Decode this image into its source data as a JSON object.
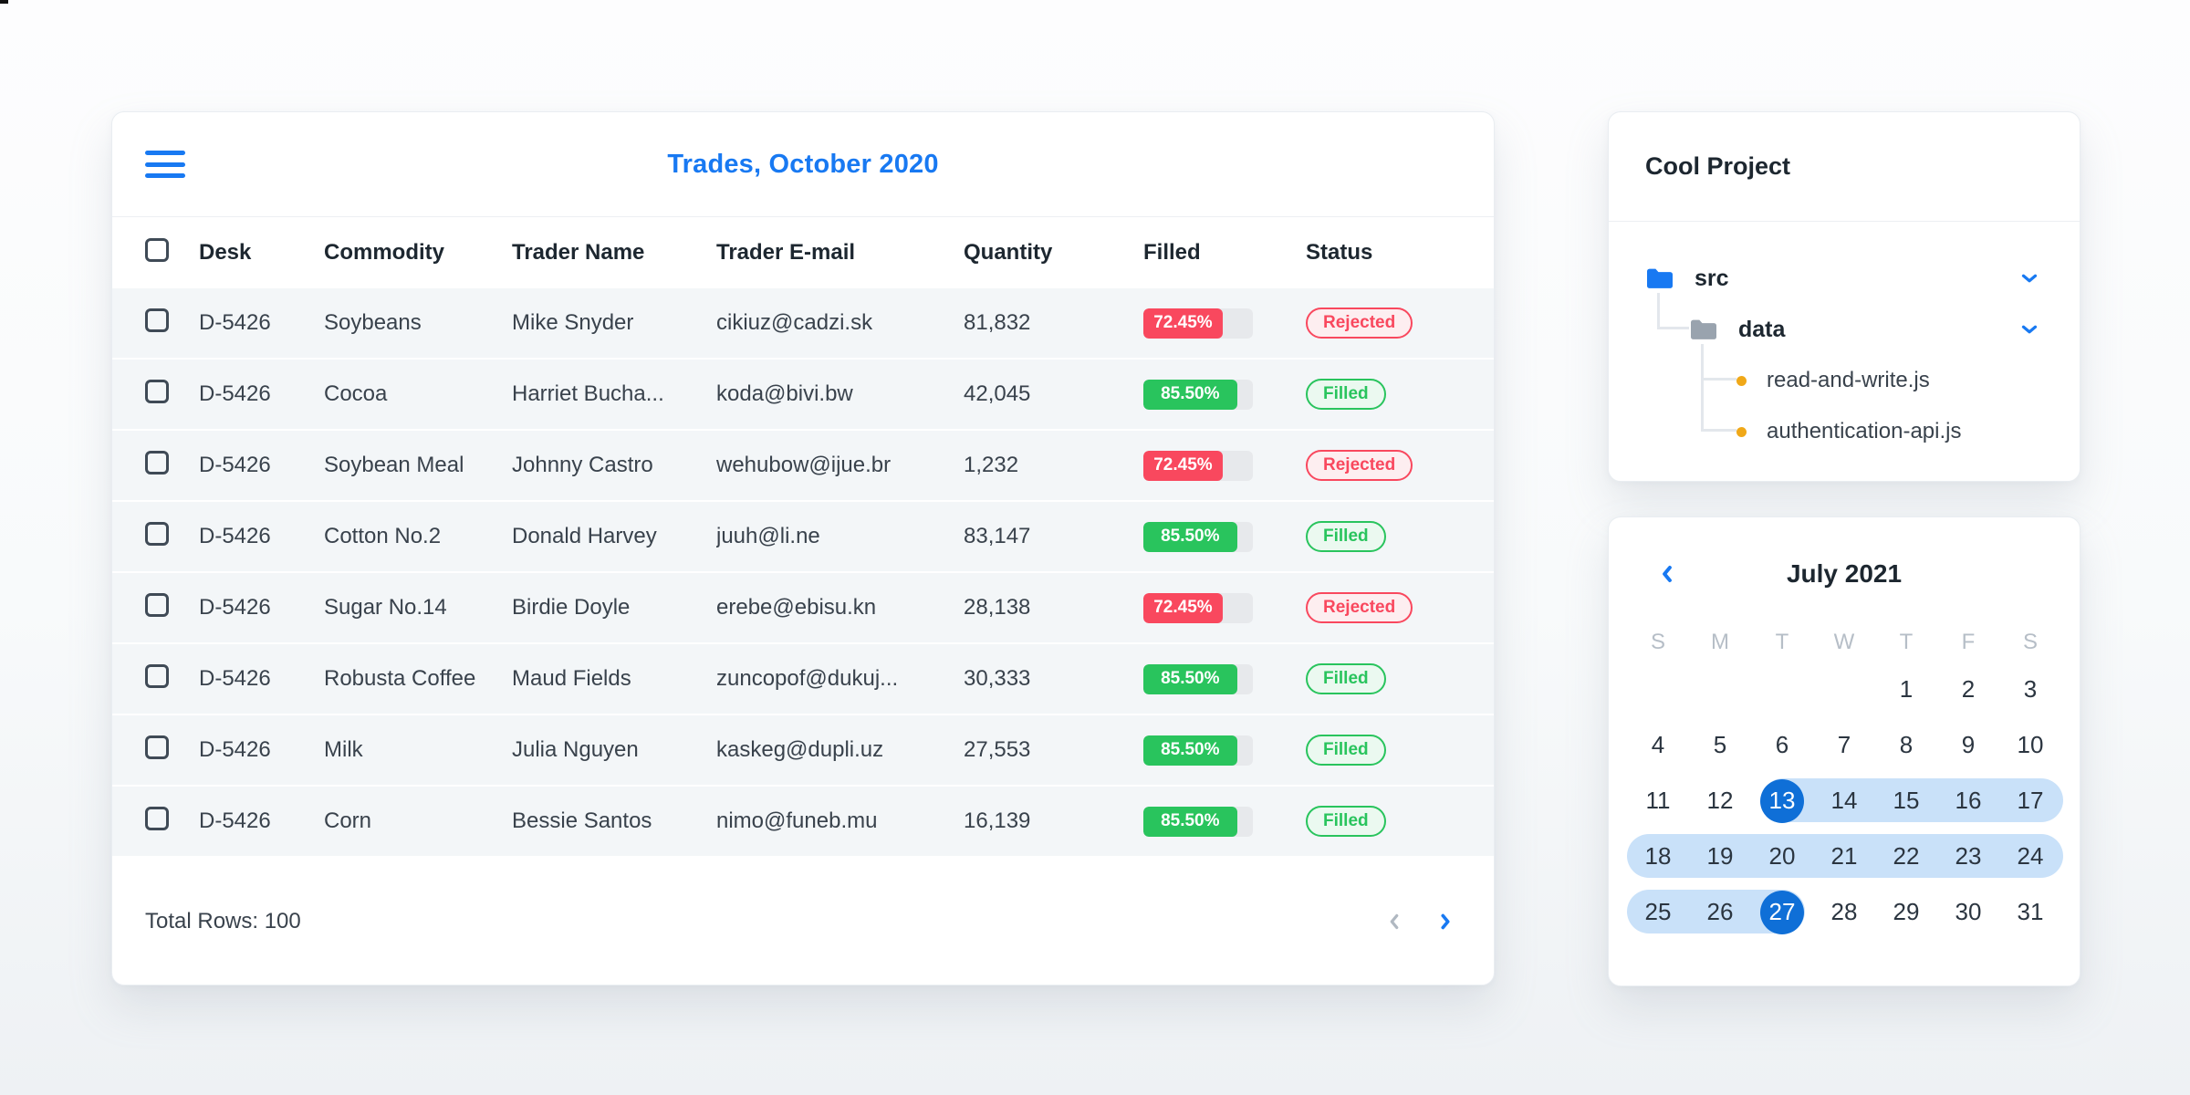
{
  "trades": {
    "title": "Trades, October 2020",
    "menu_icon": "hamburger",
    "columns": [
      "Desk",
      "Commodity",
      "Trader Name",
      "Trader E-mail",
      "Quantity",
      "Filled",
      "Status"
    ],
    "rows": [
      {
        "desk": "D-5426",
        "commodity": "Soybeans",
        "trader": "Mike Snyder",
        "email": "cikiuz@cadzi.sk",
        "quantity": "81,832",
        "filled_label": "72.45%",
        "filled_value": 72.45,
        "status": "Rejected"
      },
      {
        "desk": "D-5426",
        "commodity": "Cocoa",
        "trader": "Harriet Bucha...",
        "email": "koda@bivi.bw",
        "quantity": "42,045",
        "filled_label": "85.50%",
        "filled_value": 85.5,
        "status": "Filled"
      },
      {
        "desk": "D-5426",
        "commodity": "Soybean Meal",
        "trader": "Johnny Castro",
        "email": "wehubow@ijue.br",
        "quantity": "1,232",
        "filled_label": "72.45%",
        "filled_value": 72.45,
        "status": "Rejected"
      },
      {
        "desk": "D-5426",
        "commodity": "Cotton No.2",
        "trader": "Donald Harvey",
        "email": "juuh@li.ne",
        "quantity": "83,147",
        "filled_label": "85.50%",
        "filled_value": 85.5,
        "status": "Filled"
      },
      {
        "desk": "D-5426",
        "commodity": "Sugar No.14",
        "trader": "Birdie Doyle",
        "email": "erebe@ebisu.kn",
        "quantity": "28,138",
        "filled_label": "72.45%",
        "filled_value": 72.45,
        "status": "Rejected"
      },
      {
        "desk": "D-5426",
        "commodity": "Robusta Coffee",
        "trader": "Maud Fields",
        "email": "zuncopof@dukuj...",
        "quantity": "30,333",
        "filled_label": "85.50%",
        "filled_value": 85.5,
        "status": "Filled"
      },
      {
        "desk": "D-5426",
        "commodity": "Milk",
        "trader": "Julia Nguyen",
        "email": "kaskeg@dupli.uz",
        "quantity": "27,553",
        "filled_label": "85.50%",
        "filled_value": 85.5,
        "status": "Filled"
      },
      {
        "desk": "D-5426",
        "commodity": "Corn",
        "trader": "Bessie Santos",
        "email": "nimo@funeb.mu",
        "quantity": "16,139",
        "filled_label": "85.50%",
        "filled_value": 85.5,
        "status": "Filled"
      }
    ],
    "footer": {
      "total_label": "Total Rows: 100"
    },
    "pagination": {
      "prev_icon": "chevron-left",
      "next_icon": "chevron-right"
    }
  },
  "project": {
    "title": "Cool Project",
    "tree": [
      {
        "label": "src",
        "type": "folder",
        "icon_color": "blue",
        "expanded": true,
        "level": 0
      },
      {
        "label": "data",
        "type": "folder",
        "icon_color": "gray",
        "expanded": true,
        "level": 1
      },
      {
        "label": "read-and-write.js",
        "type": "file",
        "level": 2
      },
      {
        "label": "authentication-api.js",
        "type": "file",
        "level": 2
      }
    ]
  },
  "calendar": {
    "nav_prev_icon": "chevron-left",
    "title": "July 2021",
    "day_headers": [
      "S",
      "M",
      "T",
      "W",
      "T",
      "F",
      "S"
    ],
    "weeks": [
      [
        "",
        "",
        "",
        "",
        1,
        2,
        3
      ],
      [
        4,
        5,
        6,
        7,
        8,
        9,
        10
      ],
      [
        11,
        12,
        13,
        14,
        15,
        16,
        17
      ],
      [
        18,
        19,
        20,
        21,
        22,
        23,
        24
      ],
      [
        25,
        26,
        27,
        28,
        29,
        30,
        31
      ]
    ],
    "range": {
      "start": 13,
      "end": 27
    },
    "selected_days": [
      13,
      27
    ]
  },
  "colors": {
    "accent": "#1879F2",
    "calendar_selected": "#0F6FD7",
    "calendar_range": "#C9E1F9",
    "danger": "#F9485E",
    "danger_soft": "#FDEEF0",
    "success": "#29C45D",
    "success_soft": "#EBF9F0",
    "progress_track": "#E7E9EC",
    "file_dot": "#F0A818",
    "row_background": "#F3F6F8"
  }
}
